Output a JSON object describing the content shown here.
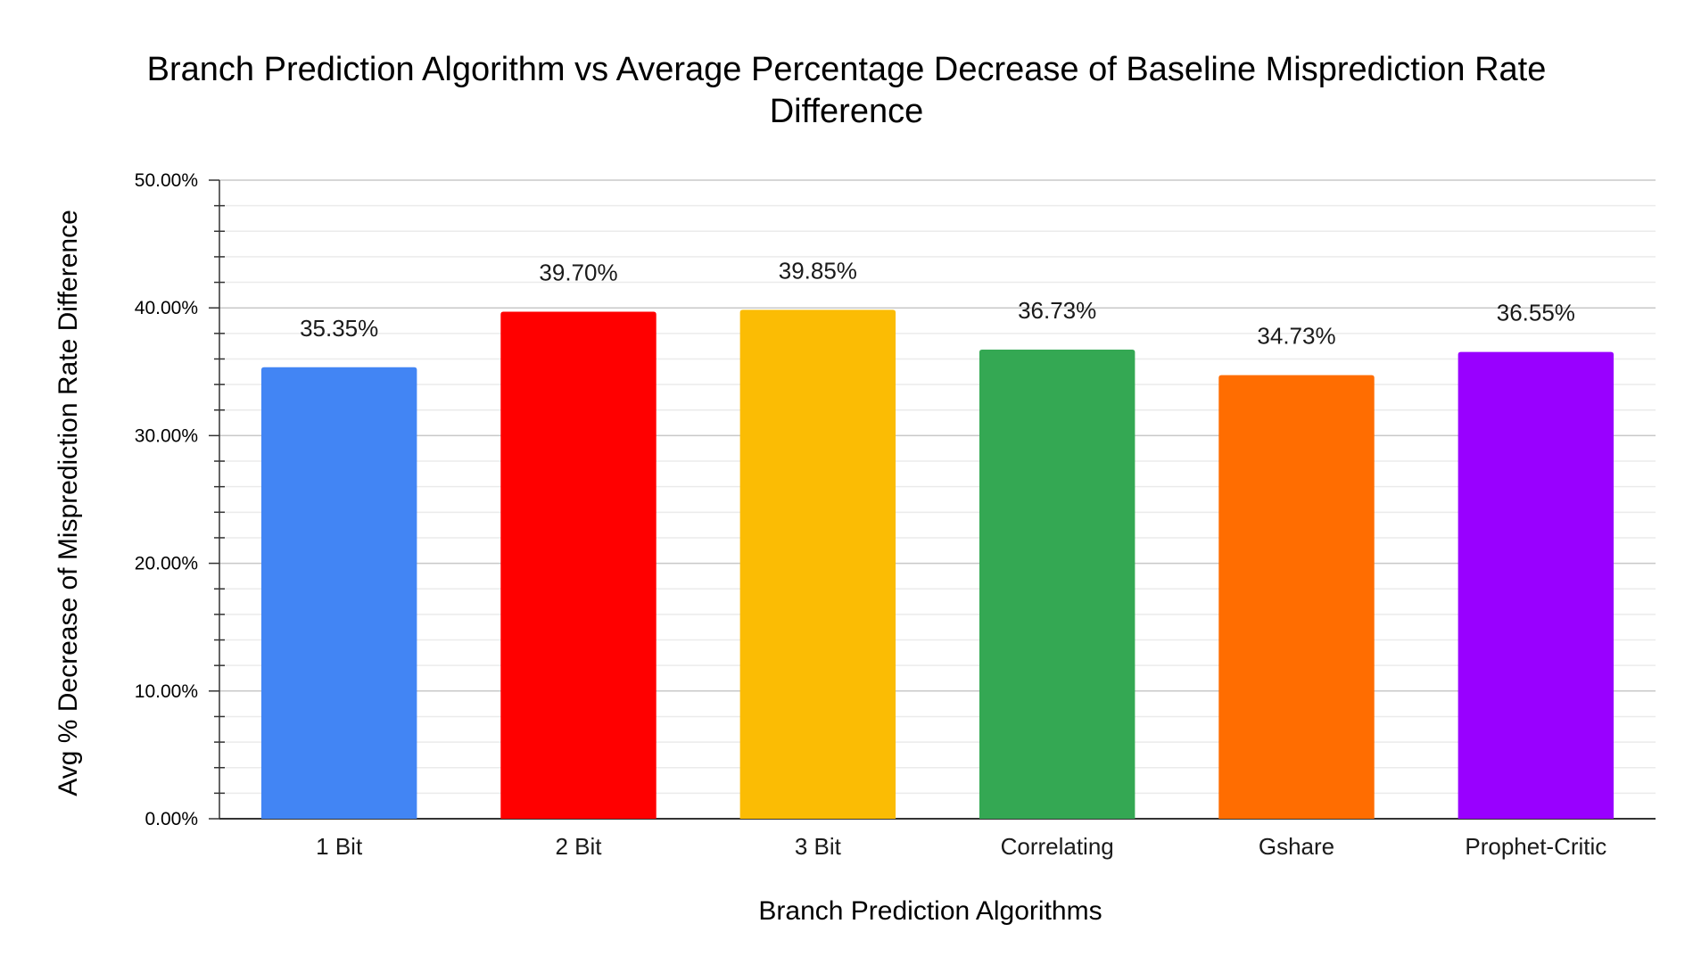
{
  "chart_data": {
    "type": "bar",
    "title_line1": "Branch Prediction Algorithm vs Average Percentage Decrease of Baseline Misprediction Rate",
    "title_line2": "Difference",
    "xlabel": "Branch Prediction Algorithms",
    "ylabel": "Avg % Decrease of Misprediction Rate Difference",
    "categories": [
      "1 Bit",
      "2 Bit",
      "3 Bit",
      "Correlating",
      "Gshare",
      "Prophet-Critic"
    ],
    "values": [
      35.35,
      39.7,
      39.85,
      36.73,
      34.73,
      36.55
    ],
    "value_labels": [
      "35.35%",
      "39.70%",
      "39.85%",
      "36.73%",
      "34.73%",
      "36.55%"
    ],
    "colors": [
      "#4285f4",
      "#ff0000",
      "#fbbc04",
      "#34a853",
      "#ff6d01",
      "#9900ff"
    ],
    "ylim": [
      0,
      50
    ],
    "yticks": [
      0,
      10,
      20,
      30,
      40,
      50
    ],
    "ytick_labels": [
      "0.00%",
      "10.00%",
      "20.00%",
      "30.00%",
      "40.00%",
      "50.00%"
    ],
    "minor_ticks_per_major": 5,
    "grid": true,
    "legend": "none"
  }
}
